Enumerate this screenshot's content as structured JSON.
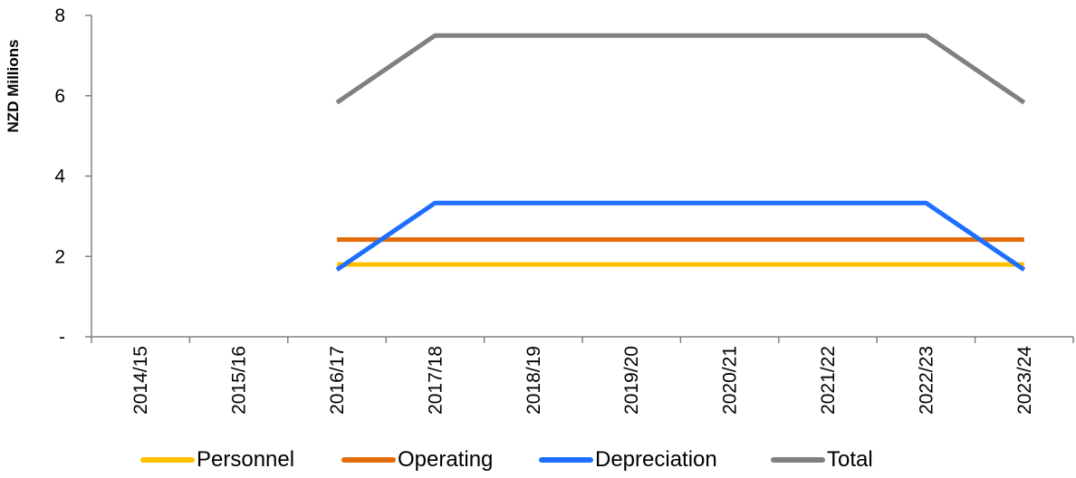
{
  "chart_data": {
    "type": "line",
    "categories": [
      "2014/15",
      "2015/16",
      "2016/17",
      "2017/18",
      "2018/19",
      "2019/20",
      "2020/21",
      "2021/22",
      "2022/23",
      "2023/24"
    ],
    "series": [
      {
        "name": "Personnel",
        "color": "#FFC000",
        "values": [
          null,
          null,
          1.8,
          1.8,
          1.8,
          1.8,
          1.8,
          1.8,
          1.8,
          1.8
        ]
      },
      {
        "name": "Operating",
        "color": "#E36C09",
        "values": [
          null,
          null,
          2.42,
          2.42,
          2.42,
          2.42,
          2.42,
          2.42,
          2.42,
          2.42
        ]
      },
      {
        "name": "Depreciation",
        "color": "#1F6FFF",
        "values": [
          null,
          null,
          1.67,
          3.33,
          3.33,
          3.33,
          3.33,
          3.33,
          3.33,
          1.67
        ]
      },
      {
        "name": "Total",
        "color": "#808080",
        "values": [
          null,
          null,
          5.83,
          7.5,
          7.5,
          7.5,
          7.5,
          7.5,
          7.5,
          5.83
        ]
      }
    ],
    "ylabel": "NZD Millions",
    "ylim": [
      0,
      8
    ],
    "yticks": [
      {
        "value": 0,
        "label": "-"
      },
      {
        "value": 2,
        "label": "2"
      },
      {
        "value": 4,
        "label": "4"
      },
      {
        "value": 6,
        "label": "6"
      },
      {
        "value": 8,
        "label": "8"
      }
    ],
    "grid": false,
    "legend_position": "bottom"
  }
}
